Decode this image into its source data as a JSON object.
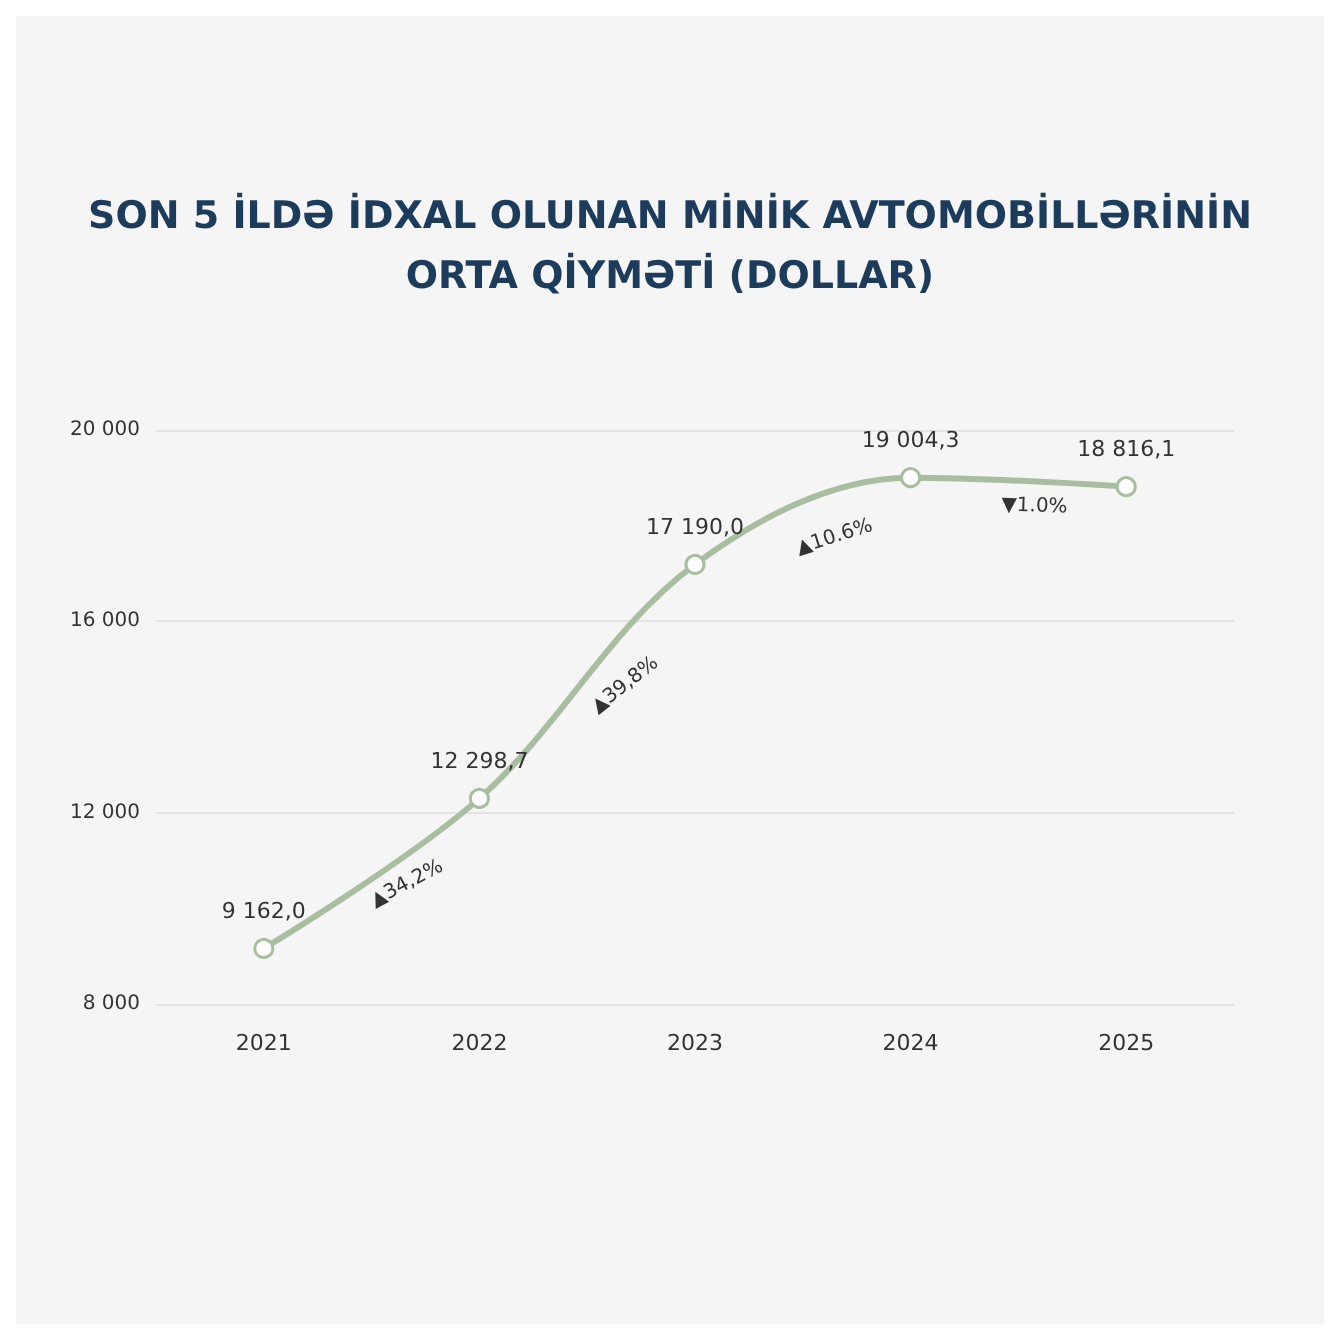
{
  "chart_data": {
    "type": "line",
    "title": "SON 5 İLDƏ İDXAL OLUNAN MİNİK AVTOMOBİLLƏRİNİN\nORTA QİYMƏTİ (DOLLAR)",
    "categories": [
      "2021",
      "2022",
      "2023",
      "2024",
      "2025"
    ],
    "series": [
      {
        "color": "#a9bda0",
        "values": [
          9162.0,
          12298.7,
          17190.0,
          19004.3,
          18816.1
        ],
        "value_labels": [
          "9 162,0",
          "12 298,7",
          "17 190,0",
          "19 004,3",
          "18 816,1"
        ]
      }
    ],
    "ylim": [
      8000,
      20000
    ],
    "yticks": [
      {
        "value": 8000,
        "label": "8 000"
      },
      {
        "value": 12000,
        "label": "12 000"
      },
      {
        "value": 16000,
        "label": "16 000"
      },
      {
        "value": 20000,
        "label": "20 000"
      }
    ],
    "grid": "y",
    "marker": "circle",
    "line_style": "solid",
    "annotations": [
      "▲34,2%",
      "▲39,8%",
      "▲10.6%",
      "▼1.0%"
    ]
  }
}
